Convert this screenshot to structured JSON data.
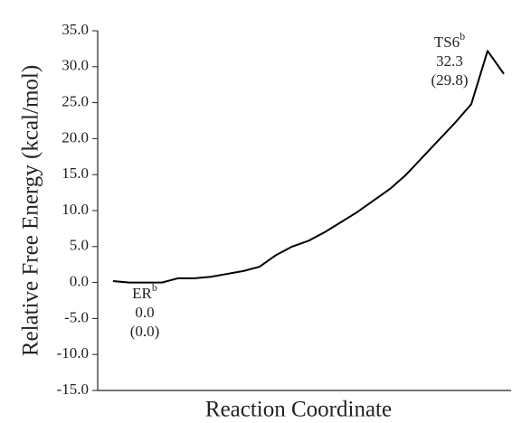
{
  "chart_data": {
    "type": "line",
    "xlabel": "Reaction Coordinate",
    "ylabel": "Relative Free Energy (kcal/mol)",
    "series": [
      {
        "color": "#000000",
        "values": [
          0.2,
          0.0,
          0.0,
          0.0,
          0.6,
          0.6,
          0.8,
          1.2,
          1.6,
          2.2,
          3.8,
          5.0,
          5.8,
          7.0,
          8.4,
          9.8,
          11.4,
          13.0,
          15.0,
          17.4,
          19.8,
          22.2,
          24.8,
          32.2,
          29.0
        ]
      }
    ],
    "ylim": [
      -15,
      35
    ],
    "yticks": [
      {
        "value": -15,
        "label": "-15.0"
      },
      {
        "value": -10,
        "label": "-10.0"
      },
      {
        "value": -5,
        "label": "-5.0"
      },
      {
        "value": 0,
        "label": "0.0"
      },
      {
        "value": 5,
        "label": "5.0"
      },
      {
        "value": 10,
        "label": "10.0"
      },
      {
        "value": 15,
        "label": "15.0"
      },
      {
        "value": 20,
        "label": "20.0"
      },
      {
        "value": 25,
        "label": "25.0"
      },
      {
        "value": 30,
        "label": "30.0"
      },
      {
        "value": 35,
        "label": "35.0"
      }
    ],
    "annotations": [
      {
        "label": "ER",
        "sup": "b",
        "lines": [
          "0.0",
          "(0.0)"
        ]
      },
      {
        "label": "TS6",
        "sup": "b",
        "lines": [
          "32.3",
          "(29.8)"
        ]
      }
    ]
  }
}
